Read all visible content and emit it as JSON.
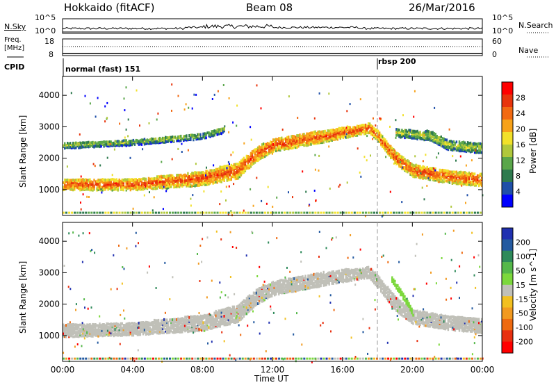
{
  "header": {
    "title_left": "Hokkaido (fitACF)",
    "title_center": "Beam 08",
    "title_right": "26/Mar/2016"
  },
  "params": {
    "nsky_label": "N.Sky",
    "nsky_ticks": [
      "10^5",
      "10^0"
    ],
    "nsearch_label": "N.Search",
    "nsearch_ticks": [
      "10^5",
      "10^0"
    ],
    "freq_label_1": "Freq.",
    "freq_label_2": "[MHz]",
    "freq_ticks": [
      "18",
      "8"
    ],
    "nave_label": "Nave",
    "nave_ticks": [
      "60",
      "0"
    ],
    "cpid_label": "CPID",
    "cpid_modes": [
      {
        "name": "normal (fast) 151",
        "start_hour": 0
      },
      {
        "name": "rbsp 200",
        "start_hour": 18
      }
    ]
  },
  "colors": {
    "power": [
      "#0000ff",
      "#1f4fa8",
      "#2e7a4e",
      "#5aa64a",
      "#b0c83c",
      "#f2e12a",
      "#f7a21a",
      "#f26a12",
      "#e8340c",
      "#ff0000"
    ],
    "velocity": [
      "#2030b0",
      "#245aa0",
      "#2e8a5a",
      "#55b84a",
      "#7cd83c",
      "#c0c0b8",
      "#f2c020",
      "#f29a20",
      "#ee6a10",
      "#e83010",
      "#ff0000"
    ],
    "ground_scatter": "#c0c0b8",
    "marker_line": "#999999"
  },
  "chart_data": [
    {
      "type": "heatmap",
      "panel": "power",
      "ylabel": "Slant Range [km]",
      "colorbar_label": "Power [dB]",
      "colorbar_ticks": [
        "28",
        "24",
        "20",
        "16",
        "12",
        "8",
        "4"
      ],
      "ylim": [
        180,
        4600
      ],
      "yticks": [
        "4000",
        "3000",
        "2000",
        "1000"
      ],
      "xlim_hours": [
        0,
        24
      ],
      "echo_bands": [
        {
          "name": "main",
          "hours": [
            0,
            4,
            8,
            10,
            11,
            12,
            14,
            16,
            17.5,
            18,
            19,
            20,
            22,
            24
          ],
          "center_km": [
            1150,
            1150,
            1350,
            1600,
            2100,
            2400,
            2600,
            2800,
            2950,
            2700,
            2000,
            1600,
            1400,
            1300
          ],
          "width_km": [
            350,
            350,
            450,
            500,
            450,
            400,
            400,
            350,
            300,
            350,
            400,
            400,
            400,
            400
          ],
          "power_db": 26
        },
        {
          "name": "upper",
          "hours": [
            0,
            4,
            8,
            9.2
          ],
          "center_km": [
            2400,
            2500,
            2700,
            2900
          ],
          "width_km": [
            200,
            200,
            200,
            200
          ],
          "power_db": 14
        },
        {
          "name": "late",
          "hours": [
            19,
            21,
            22,
            24
          ],
          "center_km": [
            2800,
            2700,
            2400,
            2300
          ],
          "width_km": [
            250,
            300,
            300,
            300
          ],
          "power_db": 16
        }
      ]
    },
    {
      "type": "heatmap",
      "panel": "velocity",
      "ylabel": "Slant Range [km]",
      "colorbar_label": "Velocity [m s^-1]",
      "colorbar_ticks": [
        "200",
        "100",
        "50",
        "15",
        "-15",
        "-50",
        "-100",
        "-200"
      ],
      "ylim": [
        180,
        4600
      ],
      "yticks": [
        "4000",
        "3000",
        "2000",
        "1000"
      ],
      "xlim_hours": [
        0,
        24
      ],
      "xticks": [
        "00:00",
        "04:00",
        "08:00",
        "12:00",
        "16:00",
        "20:00",
        "00:00"
      ],
      "xlabel": "Time UT",
      "echo_bands": [
        {
          "name": "ground",
          "hours": [
            0,
            4,
            8,
            10,
            11,
            12,
            14,
            16,
            17.5,
            18,
            19,
            20,
            22,
            24
          ],
          "center_km": [
            1150,
            1200,
            1400,
            1700,
            2200,
            2500,
            2700,
            2900,
            3000,
            2700,
            2000,
            1600,
            1400,
            1300
          ],
          "width_km": [
            400,
            400,
            500,
            550,
            500,
            450,
            450,
            400,
            350,
            400,
            450,
            450,
            450,
            450
          ],
          "velocity_ms": 0
        },
        {
          "name": "ionospheric",
          "hours": [
            18.8,
            19.5,
            20
          ],
          "center_km": [
            2800,
            2200,
            1700
          ],
          "width_km": [
            200,
            200,
            150
          ],
          "velocity_ms": 40
        }
      ]
    }
  ]
}
